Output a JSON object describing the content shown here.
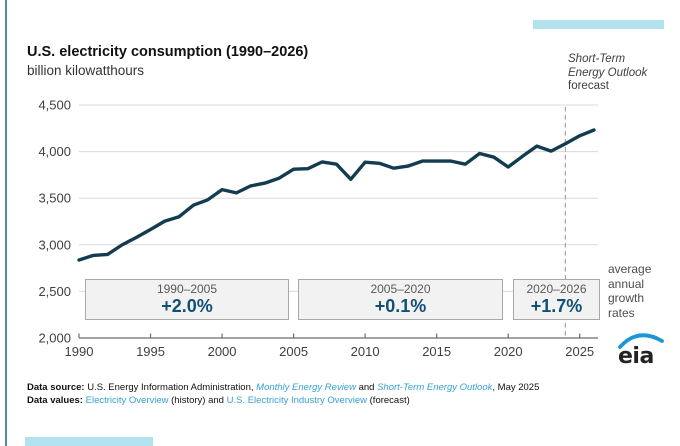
{
  "header": {
    "title": "U.S. electricity consumption (1990–2026)",
    "subtitle": "billion kilowatthours"
  },
  "forecast_label": {
    "line1": "Short-Term",
    "line2": "Energy Outlook",
    "line3": "forecast"
  },
  "growth_note": "average annual growth rates",
  "chart_data": {
    "type": "line",
    "title": "U.S. electricity consumption (1990–2026)",
    "ylabel": "billion kilowatthours",
    "x": [
      1990,
      1991,
      1992,
      1993,
      1994,
      1995,
      1996,
      1997,
      1998,
      1999,
      2000,
      2001,
      2002,
      2003,
      2004,
      2005,
      2006,
      2007,
      2008,
      2009,
      2010,
      2011,
      2012,
      2013,
      2014,
      2015,
      2016,
      2017,
      2018,
      2019,
      2020,
      2021,
      2022,
      2023,
      2024,
      2025,
      2026
    ],
    "values": [
      2837,
      2886,
      2897,
      2998,
      3078,
      3164,
      3254,
      3302,
      3425,
      3483,
      3592,
      3557,
      3632,
      3662,
      3716,
      3811,
      3817,
      3890,
      3865,
      3703,
      3886,
      3875,
      3822,
      3844,
      3898,
      3898,
      3898,
      3865,
      3980,
      3940,
      3835,
      3950,
      4059,
      4005,
      4085,
      4170,
      4232
    ],
    "ylim": [
      2000,
      4500
    ],
    "yticks": [
      2000,
      2500,
      3000,
      3500,
      4000,
      4500
    ],
    "xticks": [
      1990,
      1995,
      2000,
      2005,
      2010,
      2015,
      2020,
      2025
    ],
    "grid": true,
    "forecast_divider_year": 2024,
    "annotations": [
      {
        "period": "1990–2005",
        "rate": "+2.0%"
      },
      {
        "period": "2005–2020",
        "rate": "+0.1%"
      },
      {
        "period": "2020–2026",
        "rate": "+1.7%"
      }
    ],
    "colors": {
      "line": "#143c50",
      "grid": "#d9d9d9",
      "axis": "#6e6e6e",
      "dashed": "#a3a3a3",
      "tick_label": "#404040",
      "rate_text": "#125072",
      "accent_teal": "#b2e2ee",
      "left_accent": "#4a8cae"
    }
  },
  "logo": {
    "text": "eia"
  },
  "footer": {
    "line1": {
      "label": "Data source: ",
      "text1": "U.S. Energy Information Administration, ",
      "link_mer": "Monthly Energy Review",
      "text2": " and ",
      "link_steo": "Short-Term Energy Outlook",
      "text3": ", May 2025"
    },
    "line2": {
      "label": "Data values: ",
      "link_history": "Electricity Overview",
      "text1": " (history) and ",
      "link_forecast": "U.S. Electricity Industry Overview",
      "text2": " (forecast)"
    }
  }
}
